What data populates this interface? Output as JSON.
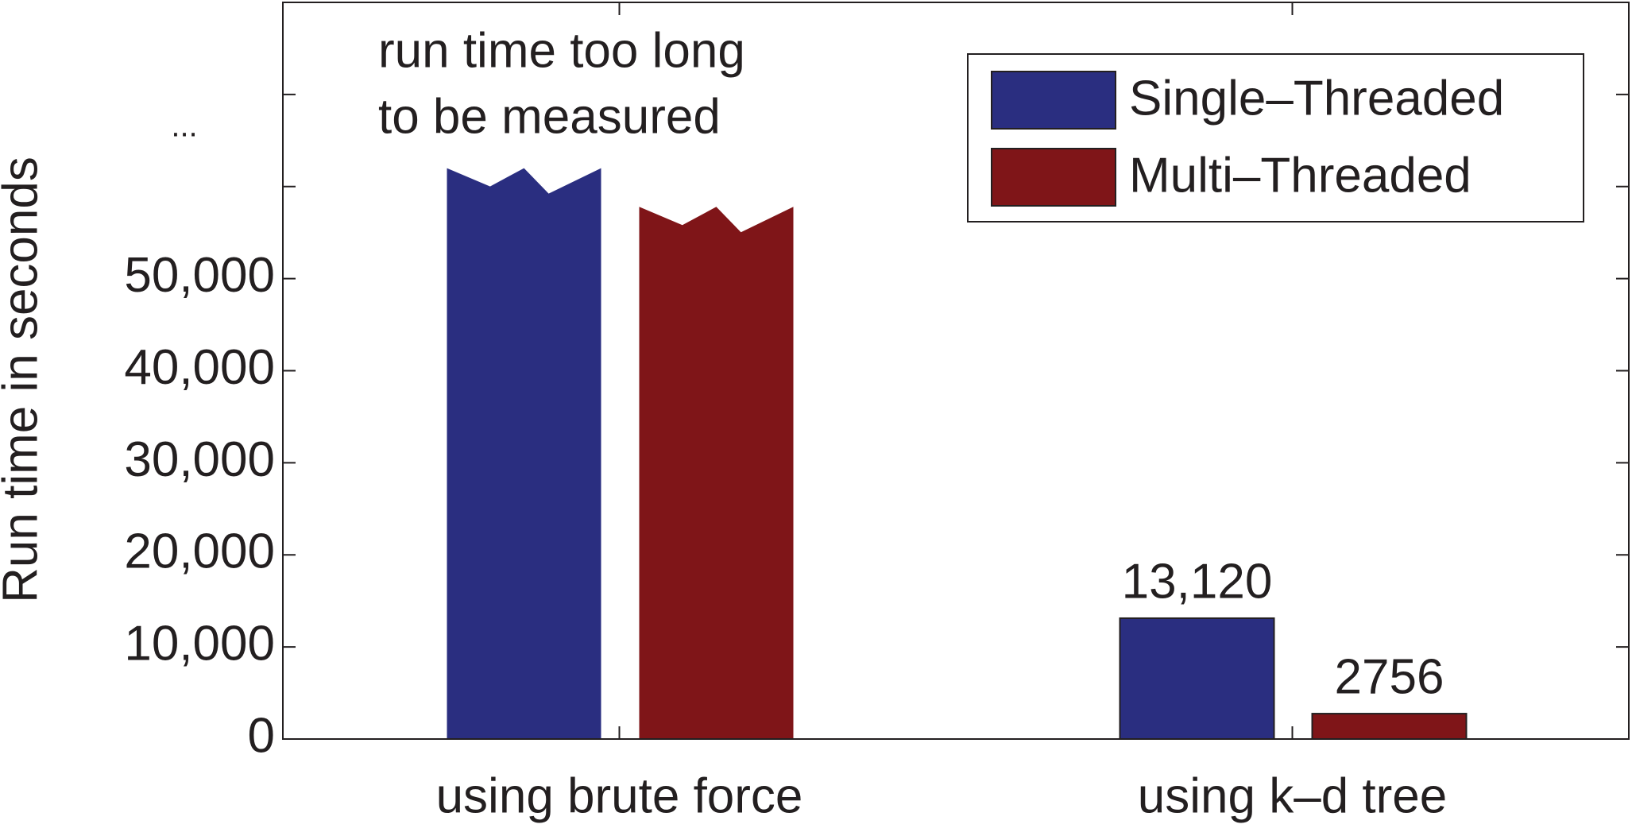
{
  "chart_data": {
    "type": "bar",
    "y_label": "Run time in seconds",
    "annotation": [
      "run time too long",
      "to be measured"
    ],
    "categories": [
      "using brute force",
      "using k–d tree"
    ],
    "series": [
      {
        "name": "Single–Threaded",
        "color": "#2a2e80",
        "values": [
          null,
          13120
        ],
        "value_labels": [
          null,
          "13,120"
        ]
      },
      {
        "name": "Multi–Threaded",
        "color": "#7f1518",
        "values": [
          null,
          2756
        ],
        "value_labels": [
          null,
          "2756"
        ]
      }
    ],
    "ylim": [
      0,
      80000
    ],
    "yticks": [
      0,
      {
        "value": 10000,
        "label": "10,000"
      },
      {
        "value": 20000,
        "label": "20,000"
      },
      {
        "value": 30000,
        "label": "30,000"
      },
      {
        "value": 40000,
        "label": "40,000"
      },
      {
        "value": 50000,
        "label": "50,000"
      },
      {
        "value": 60000,
        "label": null
      },
      {
        "value": 70000,
        "label": "..."
      }
    ],
    "legend": "upper right"
  }
}
